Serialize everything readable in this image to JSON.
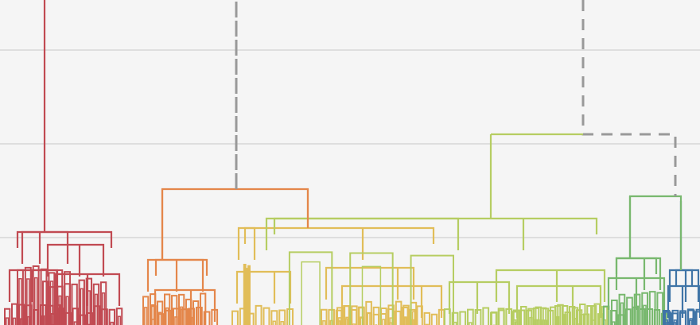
{
  "chart_data": {
    "type": "dendrogram",
    "title": "",
    "xlabel": "",
    "ylabel": "",
    "grid": true,
    "legend": "none",
    "colors": {
      "background": "#f5f5f5",
      "grid": "#dedede",
      "link_above_threshold": "#999999",
      "clusters": [
        "#c14a52",
        "#e4864a",
        "#e1bd58",
        "#b6cd62",
        "#78b86e",
        "#3f74a6"
      ]
    },
    "y_domain": [
      0,
      409
    ],
    "gridlines": [
      63,
      181,
      299
    ],
    "clusters": [
      {
        "name": "c1",
        "color_index": 0,
        "root": {
          "x": 56,
          "y": 0
        },
        "inner": [
          [
            28,
            50,
            85,
            292
          ],
          [
            12,
            40,
            72,
            340
          ],
          [
            60,
            100,
            130,
            308
          ],
          [
            70,
            110,
            150,
            345
          ]
        ]
      },
      {
        "name": "c2",
        "color_index": 1,
        "root": {
          "x": 204,
          "y": 238
        },
        "inner": [
          [
            186,
            222,
            255,
            327
          ],
          [
            195,
            240,
            270,
            365
          ]
        ]
      },
      {
        "name": "c3",
        "color_index": 2,
        "root": {
          "x": 387,
          "y": 238
        },
        "inner": [
          [
            320,
            456,
            300,
            287
          ],
          [
            298,
            345,
            365,
            342
          ],
          [
            410,
            500,
            520,
            337
          ],
          [
            430,
            530,
            555,
            360
          ]
        ]
      },
      {
        "name": "c4",
        "color_index": 3,
        "root": {
          "x": 617,
          "y": 169
        },
        "inner": [
          [
            576,
            658,
            335,
            275
          ],
          [
            565,
            600,
            640,
            355
          ],
          [
            624,
            700,
            760,
            340
          ],
          [
            650,
            720,
            755,
            360
          ]
        ]
      },
      {
        "name": "c5",
        "color_index": 4,
        "root": {
          "x": 792,
          "y": 247
        },
        "inner": [
          [
            775,
            810,
            830,
            325
          ],
          [
            765,
            800,
            835,
            350
          ]
        ]
      },
      {
        "name": "c6",
        "color_index": 5,
        "root": {
          "x": 856,
          "y": 253
        },
        "inner": [
          [
            842,
            862,
            878,
            340
          ],
          [
            840,
            858,
            880,
            360
          ]
        ]
      }
    ],
    "top_links": [
      {
        "left": "c2",
        "right": "c3",
        "height": 238,
        "color": "cluster:1"
      },
      {
        "left": "c5",
        "right": "c6",
        "height": 247,
        "color": "cluster:4"
      }
    ]
  }
}
